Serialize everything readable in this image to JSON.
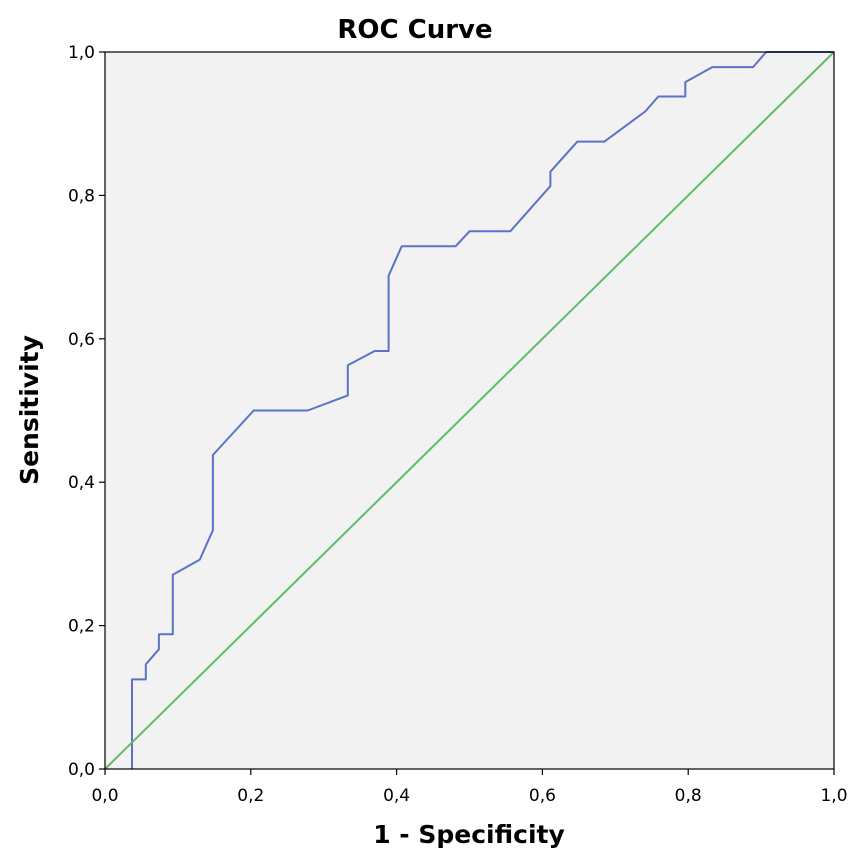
{
  "chart_data": {
    "type": "line",
    "title": "ROC Curve",
    "xlabel": "1 - Specificity",
    "ylabel": "Sensitivity",
    "xlim": [
      0,
      1
    ],
    "ylim": [
      0,
      1
    ],
    "x_ticks": [
      "0,0",
      "0,2",
      "0,4",
      "0,6",
      "0,8",
      "1,0"
    ],
    "y_ticks": [
      "0,0",
      "0,2",
      "0,4",
      "0,6",
      "0,8",
      "1,0"
    ],
    "grid": false,
    "background_color": "#f2f2f2",
    "series": [
      {
        "color": "#5b73c7",
        "x": [
          0.037,
          0.037,
          0.056,
          0.056,
          0.074,
          0.074,
          0.093,
          0.093,
          0.13,
          0.148,
          0.148,
          0.204,
          0.278,
          0.333,
          0.333,
          0.37,
          0.389,
          0.389,
          0.407,
          0.481,
          0.5,
          0.556,
          0.611,
          0.611,
          0.648,
          0.685,
          0.741,
          0.759,
          0.796,
          0.796,
          0.833,
          0.889,
          0.907,
          0.926,
          1.0
        ],
        "y": [
          0.0,
          0.125,
          0.125,
          0.146,
          0.167,
          0.188,
          0.188,
          0.271,
          0.292,
          0.333,
          0.438,
          0.5,
          0.5,
          0.521,
          0.563,
          0.583,
          0.583,
          0.688,
          0.729,
          0.729,
          0.75,
          0.75,
          0.813,
          0.833,
          0.875,
          0.875,
          0.917,
          0.938,
          0.938,
          0.958,
          0.979,
          0.979,
          1.0,
          1.0,
          1.0
        ]
      },
      {
        "color": "#5bbf68",
        "x": [
          0,
          1
        ],
        "y": [
          0,
          1
        ]
      }
    ]
  }
}
